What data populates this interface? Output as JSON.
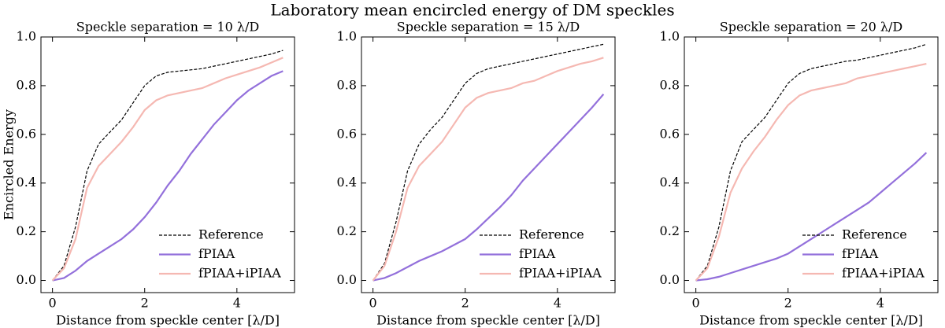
{
  "title": "Laboratory mean encircled energy of DM speckles",
  "chart_data": [
    {
      "type": "line",
      "title": "Speckle separation = 10 λ/D",
      "xlabel": "Distance from speckle center [λ/D]",
      "ylabel": "Encircled Energy",
      "x": [
        0,
        0.25,
        0.5,
        0.75,
        1,
        1.25,
        1.5,
        1.75,
        2,
        2.25,
        2.5,
        2.75,
        3,
        3.25,
        3.5,
        3.75,
        4,
        4.25,
        4.5,
        4.75,
        5
      ],
      "series": [
        {
          "name": "Reference",
          "color": "#000000",
          "linestyle": "dashed",
          "values": [
            0,
            0.06,
            0.22,
            0.45,
            0.56,
            0.61,
            0.66,
            0.73,
            0.8,
            0.84,
            0.855,
            0.86,
            0.865,
            0.87,
            0.88,
            0.89,
            0.9,
            0.91,
            0.92,
            0.93,
            0.945
          ]
        },
        {
          "name": "fPIAA",
          "color": "#9370db",
          "linestyle": "solid",
          "values": [
            0,
            0.01,
            0.04,
            0.08,
            0.11,
            0.14,
            0.17,
            0.21,
            0.26,
            0.32,
            0.39,
            0.45,
            0.52,
            0.58,
            0.64,
            0.69,
            0.74,
            0.78,
            0.81,
            0.84,
            0.86
          ]
        },
        {
          "name": "fPIAA+iPIAA",
          "color": "#f5b8b2",
          "linestyle": "solid",
          "values": [
            0,
            0.05,
            0.17,
            0.38,
            0.47,
            0.52,
            0.57,
            0.63,
            0.7,
            0.74,
            0.76,
            0.77,
            0.78,
            0.79,
            0.81,
            0.83,
            0.845,
            0.86,
            0.875,
            0.895,
            0.915
          ]
        }
      ],
      "xlim": [
        -0.25,
        5.25
      ],
      "ylim": [
        -0.05,
        1.0
      ],
      "xticks": [
        0,
        2,
        4
      ],
      "yticks": [
        {
          "value": 0,
          "label": "0.0"
        },
        0.2,
        0.4,
        0.6,
        0.8,
        {
          "value": 1,
          "label": "1.0"
        }
      ],
      "legend": "lower right"
    },
    {
      "type": "line",
      "title": "Speckle separation = 15 λ/D",
      "xlabel": "Distance from speckle center [λ/D]",
      "x": [
        0,
        0.25,
        0.5,
        0.75,
        1,
        1.25,
        1.5,
        1.75,
        2,
        2.25,
        2.5,
        2.75,
        3,
        3.25,
        3.5,
        3.75,
        4,
        4.25,
        4.5,
        4.75,
        5
      ],
      "series": [
        {
          "name": "Reference",
          "color": "#000000",
          "linestyle": "dashed",
          "values": [
            0,
            0.07,
            0.24,
            0.45,
            0.56,
            0.62,
            0.67,
            0.74,
            0.81,
            0.85,
            0.87,
            0.88,
            0.89,
            0.9,
            0.91,
            0.92,
            0.93,
            0.94,
            0.95,
            0.96,
            0.97
          ]
        },
        {
          "name": "fPIAA",
          "color": "#9370db",
          "linestyle": "solid",
          "values": [
            0,
            0.01,
            0.03,
            0.055,
            0.08,
            0.1,
            0.12,
            0.145,
            0.17,
            0.21,
            0.255,
            0.3,
            0.35,
            0.41,
            0.46,
            0.51,
            0.56,
            0.61,
            0.66,
            0.71,
            0.765
          ]
        },
        {
          "name": "fPIAA+iPIAA",
          "color": "#f5b8b2",
          "linestyle": "solid",
          "values": [
            0,
            0.06,
            0.2,
            0.38,
            0.47,
            0.52,
            0.57,
            0.64,
            0.71,
            0.75,
            0.77,
            0.78,
            0.79,
            0.81,
            0.82,
            0.84,
            0.86,
            0.875,
            0.89,
            0.9,
            0.915
          ]
        }
      ],
      "xlim": [
        -0.25,
        5.25
      ],
      "ylim": [
        -0.05,
        1.0
      ],
      "xticks": [
        0,
        2,
        4
      ],
      "yticks": [
        {
          "value": 0,
          "label": "0.0"
        },
        0.2,
        0.4,
        0.6,
        0.8,
        {
          "value": 1,
          "label": "1.0"
        }
      ],
      "legend": "lower right"
    },
    {
      "type": "line",
      "title": "Speckle separation = 20 λ/D",
      "xlabel": "Distance from speckle center [λ/D]",
      "x": [
        0,
        0.25,
        0.5,
        0.75,
        1,
        1.25,
        1.5,
        1.75,
        2,
        2.25,
        2.5,
        2.75,
        3,
        3.25,
        3.5,
        3.75,
        4,
        4.25,
        4.5,
        4.75,
        5
      ],
      "series": [
        {
          "name": "Reference",
          "color": "#000000",
          "linestyle": "dashed",
          "values": [
            0,
            0.06,
            0.22,
            0.45,
            0.57,
            0.62,
            0.67,
            0.74,
            0.81,
            0.85,
            0.87,
            0.88,
            0.89,
            0.9,
            0.905,
            0.915,
            0.925,
            0.935,
            0.945,
            0.955,
            0.97
          ]
        },
        {
          "name": "fPIAA",
          "color": "#9370db",
          "linestyle": "solid",
          "values": [
            0,
            0.005,
            0.015,
            0.03,
            0.045,
            0.06,
            0.075,
            0.09,
            0.11,
            0.14,
            0.17,
            0.2,
            0.23,
            0.26,
            0.29,
            0.32,
            0.36,
            0.4,
            0.44,
            0.48,
            0.525
          ]
        },
        {
          "name": "fPIAA+iPIAA",
          "color": "#f5b8b2",
          "linestyle": "solid",
          "values": [
            0,
            0.05,
            0.18,
            0.36,
            0.46,
            0.53,
            0.59,
            0.66,
            0.72,
            0.76,
            0.78,
            0.79,
            0.8,
            0.81,
            0.83,
            0.84,
            0.85,
            0.86,
            0.87,
            0.88,
            0.89
          ]
        }
      ],
      "xlim": [
        -0.25,
        5.25
      ],
      "ylim": [
        -0.05,
        1.0
      ],
      "xticks": [
        0,
        2,
        4
      ],
      "yticks": [
        {
          "value": 0,
          "label": "0.0"
        },
        0.2,
        0.4,
        0.6,
        0.8,
        {
          "value": 1,
          "label": "1.0"
        }
      ],
      "legend": "lower right"
    }
  ]
}
